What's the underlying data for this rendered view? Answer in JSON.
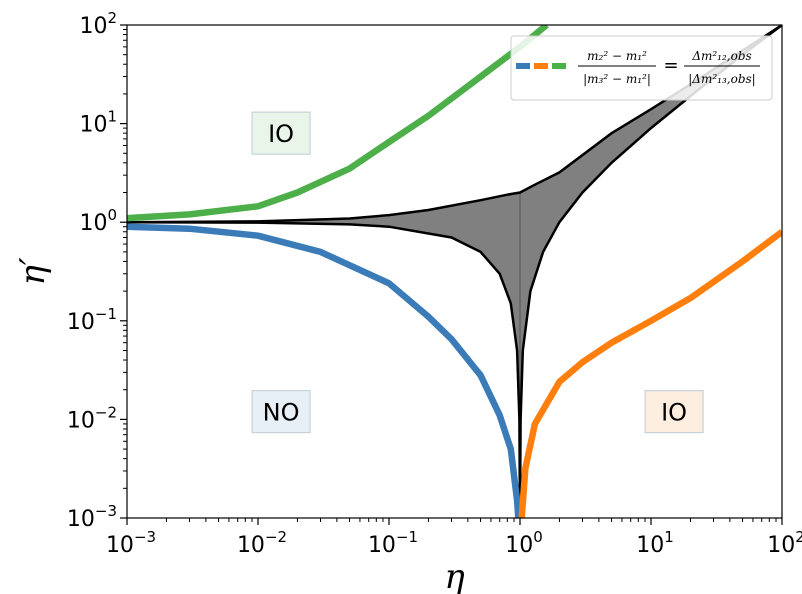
{
  "chart_data": {
    "type": "line",
    "x_scale": "log",
    "y_scale": "log",
    "xlim": [
      0.001,
      100
    ],
    "ylim": [
      0.001,
      100
    ],
    "xlabel": "η",
    "ylabel": "η′",
    "x_ticks": [
      {
        "value": 0.001,
        "base": "10",
        "exp": "−3"
      },
      {
        "value": 0.01,
        "base": "10",
        "exp": "−2"
      },
      {
        "value": 0.1,
        "base": "10",
        "exp": "−1"
      },
      {
        "value": 1,
        "base": "10",
        "exp": "0"
      },
      {
        "value": 10,
        "base": "10",
        "exp": "1"
      },
      {
        "value": 100,
        "base": "10",
        "exp": "2"
      }
    ],
    "y_ticks": [
      {
        "value": 0.001,
        "base": "10",
        "exp": "−3"
      },
      {
        "value": 0.01,
        "base": "10",
        "exp": "−2"
      },
      {
        "value": 0.1,
        "base": "10",
        "exp": "−1"
      },
      {
        "value": 1,
        "base": "10",
        "exp": "0"
      },
      {
        "value": 10,
        "base": "10",
        "exp": "1"
      },
      {
        "value": 100,
        "base": "10",
        "exp": "2"
      }
    ],
    "series": [
      {
        "color": "#3a7bb8",
        "points": [
          [
            0.001,
            0.9
          ],
          [
            0.003,
            0.86
          ],
          [
            0.01,
            0.73
          ],
          [
            0.03,
            0.5
          ],
          [
            0.1,
            0.24
          ],
          [
            0.2,
            0.11
          ],
          [
            0.3,
            0.065
          ],
          [
            0.5,
            0.028
          ],
          [
            0.7,
            0.011
          ],
          [
            0.85,
            0.005
          ],
          [
            0.95,
            0.0015
          ],
          [
            0.97,
            0.001
          ]
        ]
      },
      {
        "color": "#ff7f0e",
        "points": [
          [
            1.03,
            0.001
          ],
          [
            1.1,
            0.0032
          ],
          [
            1.3,
            0.009
          ],
          [
            2,
            0.024
          ],
          [
            3,
            0.038
          ],
          [
            5,
            0.06
          ],
          [
            10,
            0.1
          ],
          [
            20,
            0.17
          ],
          [
            50,
            0.4
          ],
          [
            100,
            0.8
          ]
        ]
      },
      {
        "color": "#4daf4a",
        "points": [
          [
            0.001,
            1.1
          ],
          [
            0.003,
            1.2
          ],
          [
            0.01,
            1.45
          ],
          [
            0.02,
            2
          ],
          [
            0.05,
            3.5
          ],
          [
            0.1,
            6.5
          ],
          [
            0.2,
            12
          ],
          [
            0.5,
            30
          ],
          [
            1,
            60
          ],
          [
            1.6,
            100
          ]
        ]
      }
    ],
    "band": {
      "fill": "#808080",
      "upper": [
        [
          0.001,
          1.0
        ],
        [
          0.01,
          1.02
        ],
        [
          0.05,
          1.09
        ],
        [
          0.1,
          1.18
        ],
        [
          0.2,
          1.33
        ],
        [
          0.5,
          1.67
        ],
        [
          0.8,
          1.9
        ],
        [
          1,
          2.0
        ],
        [
          1.3,
          2.4
        ],
        [
          2,
          3.2
        ],
        [
          5,
          8
        ],
        [
          10,
          14
        ],
        [
          20,
          25
        ],
        [
          50,
          55
        ],
        [
          100,
          100
        ]
      ],
      "lower_left": [
        [
          0.001,
          1.0
        ],
        [
          0.01,
          0.99
        ],
        [
          0.05,
          0.95
        ],
        [
          0.1,
          0.9
        ],
        [
          0.3,
          0.7
        ],
        [
          0.5,
          0.5
        ],
        [
          0.7,
          0.3
        ],
        [
          0.85,
          0.15
        ],
        [
          0.95,
          0.05
        ],
        [
          0.99,
          0.01
        ],
        [
          1,
          0.001
        ]
      ],
      "lower_right": [
        [
          1,
          0.001
        ],
        [
          1.01,
          0.01
        ],
        [
          1.05,
          0.05
        ],
        [
          1.2,
          0.2
        ],
        [
          1.5,
          0.5
        ],
        [
          2,
          1.0
        ],
        [
          3,
          2.0
        ],
        [
          5,
          4
        ],
        [
          10,
          9
        ],
        [
          20,
          19
        ],
        [
          50,
          50
        ],
        [
          100,
          100
        ]
      ]
    },
    "vline": {
      "x": 1,
      "y_from": 0.001,
      "y_to": 2.0
    },
    "legend": {
      "position": "top-right",
      "colors": [
        "#3a7bb8",
        "#ff7f0e",
        "#4daf4a"
      ],
      "lhs_num": "m₂² − m₁²",
      "lhs_den": "|m₃² − m₁²|",
      "eq": "=",
      "rhs_num": "Δm²₁₂,obs",
      "rhs_den": "|Δm²₁₃,obs|"
    },
    "regions": [
      {
        "text": "IO",
        "x": 0.015,
        "y": 8.0,
        "bg": "#eaf5e9"
      },
      {
        "text": "NO",
        "x": 0.015,
        "y": 0.012,
        "bg": "#e8f0f7"
      },
      {
        "text": "IO",
        "x": 15,
        "y": 0.012,
        "bg": "#fdeee0"
      }
    ]
  }
}
